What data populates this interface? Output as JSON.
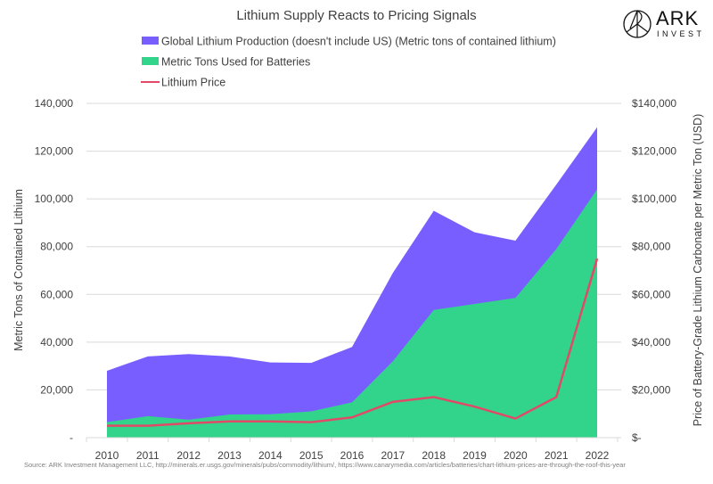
{
  "brand": {
    "name": "ARK",
    "sub": "INVEST",
    "icon": "ark-logo-icon"
  },
  "source_note": "Source: ARK Investment Management LLC, http://minerals.er.usgs.gov/minerals/pubs/commodity/lithium/, https://www.canarymedia.com/articles/batteries/chart-lithium-prices-are-through-the-roof-this-year",
  "chart_data": {
    "type": "area",
    "title": "Lithium Supply Reacts to Pricing Signals",
    "x": [
      "2010",
      "2011",
      "2012",
      "2013",
      "2014",
      "2015",
      "2016",
      "2017",
      "2018",
      "2019",
      "2020",
      "2021",
      "2022"
    ],
    "series": [
      {
        "name": "Global Lithium Production (doesn't include US) (Metric tons of contained lithium)",
        "kind": "area",
        "axis": "left",
        "color": "#785EFF",
        "values": [
          28000,
          34000,
          35000,
          34000,
          31500,
          31300,
          38000,
          69000,
          95000,
          86000,
          82500,
          106000,
          130000
        ]
      },
      {
        "name": "Metric Tons Used for Batteries",
        "kind": "area",
        "axis": "left",
        "color": "#32D48C",
        "values": [
          6500,
          9000,
          7500,
          9700,
          9800,
          11000,
          14800,
          32000,
          53500,
          56000,
          58500,
          79000,
          104000
        ]
      },
      {
        "name": "Lithium Price",
        "kind": "line",
        "axis": "right",
        "color": "#E04A66",
        "values": [
          5000,
          5000,
          6000,
          6800,
          6800,
          6500,
          8500,
          15000,
          17000,
          13000,
          8000,
          17000,
          75000
        ]
      }
    ],
    "ylabel": "Metric Tons of Contained Lithium",
    "y2label": "Price of Battery-Grade Lithium Carbonate per Metric Ton (USD)",
    "ylim": [
      0,
      140000
    ],
    "y2lim": [
      0,
      140000
    ],
    "yticks": [
      "-",
      "20,000",
      "40,000",
      "60,000",
      "80,000",
      "100,000",
      "120,000",
      "140,000"
    ],
    "y2ticks": [
      "$-",
      "$20,000",
      "$40,000",
      "$60,000",
      "$80,000",
      "$100,000",
      "$120,000",
      "$140,000"
    ],
    "grid": true,
    "legend_position": "top-left"
  }
}
